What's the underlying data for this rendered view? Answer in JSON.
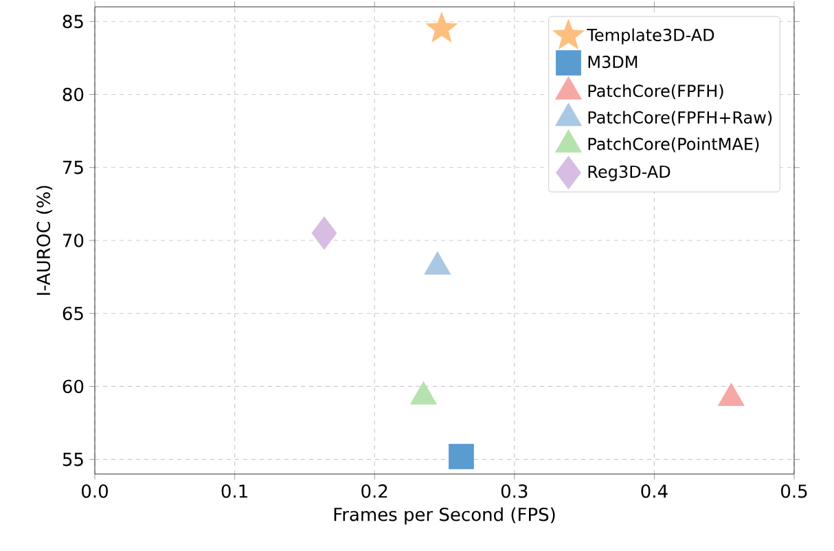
{
  "chart_data": {
    "type": "scatter",
    "xlabel": "Frames per Second (FPS)",
    "ylabel": "I-AUROC (%)",
    "xlim": [
      0,
      0.5
    ],
    "ylim": [
      54,
      86
    ],
    "xticks": [
      {
        "value": 0,
        "label": "0.0"
      },
      0.1,
      0.2,
      0.3,
      0.4,
      0.5
    ],
    "yticks": [
      55,
      60,
      65,
      70,
      75,
      80,
      85
    ],
    "grid": true,
    "legend": "top right",
    "series": [
      {
        "name": "Template3D-AD",
        "color": "#fdbf7e",
        "marker": "star",
        "x": [
          0.248
        ],
        "values": [
          84.5
        ]
      },
      {
        "name": "M3DM",
        "color": "#5a9bd0",
        "marker": "square",
        "x": [
          0.262
        ],
        "values": [
          55.2
        ]
      },
      {
        "name": "PatchCore(FPFH)",
        "color": "#f6a8a4",
        "marker": "triangle",
        "x": [
          0.455
        ],
        "values": [
          59.2
        ]
      },
      {
        "name": "PatchCore(FPFH+Raw)",
        "color": "#a8c8e4",
        "marker": "triangle",
        "x": [
          0.245
        ],
        "values": [
          68.2
        ]
      },
      {
        "name": "PatchCore(PointMAE)",
        "color": "#b5e2ae",
        "marker": "triangle",
        "x": [
          0.235
        ],
        "values": [
          59.3
        ]
      },
      {
        "name": "Reg3D-AD",
        "color": "#d7bde2",
        "marker": "diamond",
        "x": [
          0.164
        ],
        "values": [
          70.5
        ]
      }
    ]
  }
}
